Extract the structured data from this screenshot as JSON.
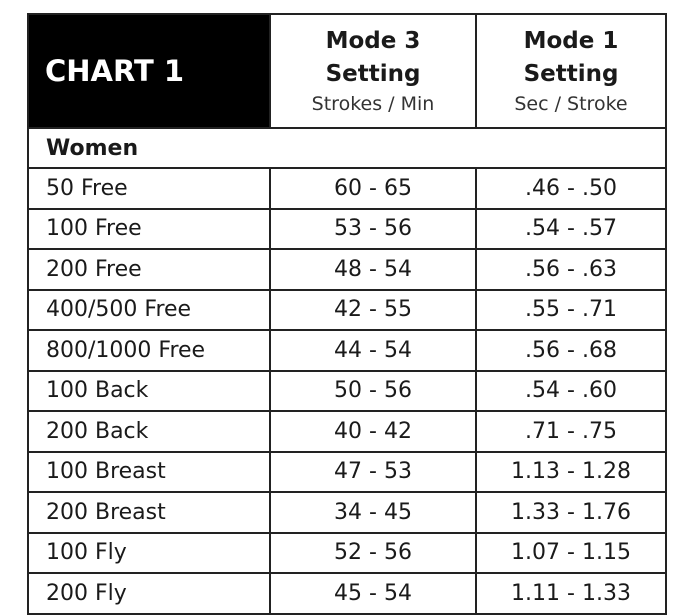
{
  "header": {
    "title": "CHART 1",
    "col1": {
      "title_line1": "Mode 3",
      "title_line2": "Setting",
      "unit": "Strokes / Min"
    },
    "col2": {
      "title_line1": "Mode 1",
      "title_line2": "Setting",
      "unit": "Sec / Stroke"
    }
  },
  "group": "Women",
  "rows": [
    {
      "event": "50 Free",
      "mode3": "60 - 65",
      "mode1": ".46 - .50"
    },
    {
      "event": "100 Free",
      "mode3": "53 - 56",
      "mode1": ".54 - .57"
    },
    {
      "event": "200 Free",
      "mode3": "48 - 54",
      "mode1": ".56 - .63"
    },
    {
      "event": "400/500 Free",
      "mode3": "42 - 55",
      "mode1": ".55 - .71"
    },
    {
      "event": "800/1000 Free",
      "mode3": "44 - 54",
      "mode1": ".56 - .68"
    },
    {
      "event": "100 Back",
      "mode3": "50 - 56",
      "mode1": ".54 - .60"
    },
    {
      "event": "200 Back",
      "mode3": "40 - 42",
      "mode1": ".71 - .75"
    },
    {
      "event": "100 Breast",
      "mode3": "47 - 53",
      "mode1": "1.13 - 1.28"
    },
    {
      "event": "200 Breast",
      "mode3": "34 - 45",
      "mode1": "1.33 - 1.76"
    },
    {
      "event": "100 Fly",
      "mode3": "52 - 56",
      "mode1": "1.07 - 1.15"
    },
    {
      "event": "200 Fly",
      "mode3": "45 - 54",
      "mode1": "1.11 - 1.33"
    }
  ]
}
